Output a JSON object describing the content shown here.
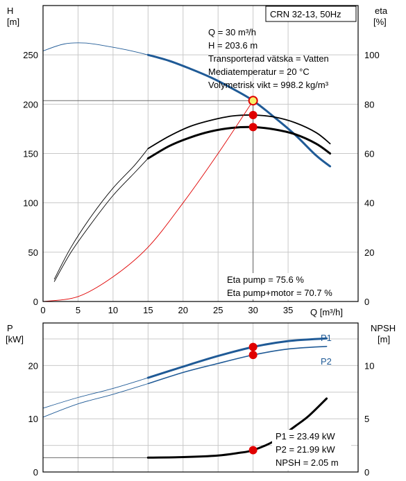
{
  "colors": {
    "blue": "#1f5a96",
    "red": "#e00000",
    "black": "#000000",
    "grid": "#c8c8c8",
    "op_fill": "#f5f06a"
  },
  "chart_data": [
    {
      "type": "line",
      "title": "CRN 32-13, 50Hz",
      "xlabel": "Q [m³/h]",
      "ylabel_left": [
        "H",
        "[m]"
      ],
      "ylabel_right": [
        "eta",
        "[%]"
      ],
      "xlim": [
        0,
        45
      ],
      "ylim_left": [
        0,
        300
      ],
      "ylim_right": [
        0,
        120
      ],
      "x_ticks": [
        "0",
        "5",
        "10",
        "15",
        "20",
        "25",
        "30",
        "35"
      ],
      "y_ticks_left": [
        "0",
        "50",
        "100",
        "150",
        "200",
        "250"
      ],
      "y_ticks_right": [
        "0",
        "20",
        "40",
        "60",
        "80",
        "100"
      ],
      "grid": true,
      "info": [
        "Q = 30 m³/h",
        "H = 203.6 m",
        "Transporterad vätska = Vatten",
        "Mediatemperatur = 20 °C",
        "Volymetrisk vikt = 998.2 kg/m³"
      ],
      "eta_text": [
        "Eta pump = 75.6 %",
        "Eta pump+motor = 70.7 %"
      ],
      "series": [
        {
          "id": "H",
          "axis": "left",
          "color": "blue",
          "x": [
            0,
            3,
            6,
            9,
            12,
            15,
            18,
            21,
            24,
            27,
            30,
            33,
            36,
            39,
            41
          ],
          "y": [
            254,
            261,
            262,
            259,
            255,
            250,
            244,
            236,
            227,
            216,
            203.6,
            187,
            169,
            148,
            137
          ]
        },
        {
          "id": "eta_pump",
          "axis": "right",
          "color": "black",
          "x": [
            1.6,
            4,
            7,
            10,
            13,
            15,
            18,
            21,
            24,
            27,
            30,
            33,
            36,
            39,
            41
          ],
          "y": [
            9,
            22,
            35,
            46,
            55,
            62,
            67,
            71,
            73.5,
            75.2,
            75.6,
            74.8,
            72.5,
            68.5,
            64
          ]
        },
        {
          "id": "eta_pump_motor",
          "axis": "right",
          "color": "black",
          "x": [
            1.6,
            4,
            7,
            10,
            13,
            15,
            18,
            21,
            24,
            27,
            30,
            33,
            36,
            39,
            41
          ],
          "y": [
            8,
            20,
            32,
            43,
            52,
            58,
            63,
            66.5,
            69,
            70.4,
            70.7,
            69.8,
            67.8,
            64,
            60
          ]
        },
        {
          "id": "system_curve",
          "axis": "left",
          "color": "red",
          "x": [
            0,
            5,
            10,
            15,
            20,
            25,
            30
          ],
          "y": [
            0,
            5,
            25,
            55,
            100,
            150,
            203.6
          ]
        }
      ],
      "points": [
        {
          "x": 30,
          "y": 203.6,
          "axis": "left"
        },
        {
          "x": 30,
          "y": 75.6,
          "axis": "right"
        },
        {
          "x": 30,
          "y": 70.7,
          "axis": "right"
        }
      ],
      "op_line": {
        "x": 30,
        "y": 203.6
      }
    },
    {
      "type": "line",
      "xlabel": "",
      "ylabel_left": [
        "P",
        "[kW]"
      ],
      "ylabel_right": [
        "NPSH",
        "[m]"
      ],
      "xlim": [
        0,
        45
      ],
      "ylim_left": [
        0,
        28
      ],
      "ylim_right": [
        0,
        14
      ],
      "y_ticks_left": [
        "0",
        "10",
        "20"
      ],
      "y_ticks_right": [
        "0",
        "5",
        "10"
      ],
      "grid": true,
      "info": [
        "P1 = 23.49 kW",
        "P2 = 21.99 kW",
        "NPSH = 2.05 m"
      ],
      "series": [
        {
          "id": "P1",
          "name": "P1",
          "axis": "left",
          "color": "blue",
          "x": [
            0,
            5,
            10,
            15,
            20,
            25,
            30,
            35,
            40.5
          ],
          "y": [
            12,
            14,
            15.7,
            17.7,
            19.8,
            21.8,
            23.49,
            24.6,
            25.1
          ]
        },
        {
          "id": "P2",
          "name": "P2",
          "axis": "left",
          "color": "blue",
          "x": [
            0,
            5,
            10,
            15,
            20,
            25,
            30,
            35,
            40.5
          ],
          "y": [
            10.3,
            12.8,
            14.6,
            16.6,
            18.7,
            20.4,
            21.99,
            23.1,
            23.6
          ]
        },
        {
          "id": "NPSH",
          "axis": "right",
          "color": "black",
          "x": [
            0,
            15,
            20,
            25,
            28,
            30,
            33,
            36,
            38,
            40.5
          ],
          "y": [
            1.35,
            1.35,
            1.4,
            1.55,
            1.8,
            2.05,
            2.9,
            4.3,
            5.3,
            6.9
          ]
        }
      ],
      "points": [
        {
          "x": 30,
          "y": 23.49,
          "axis": "left"
        },
        {
          "x": 30,
          "y": 21.99,
          "axis": "left"
        },
        {
          "x": 30,
          "y": 2.05,
          "axis": "right"
        }
      ]
    }
  ]
}
